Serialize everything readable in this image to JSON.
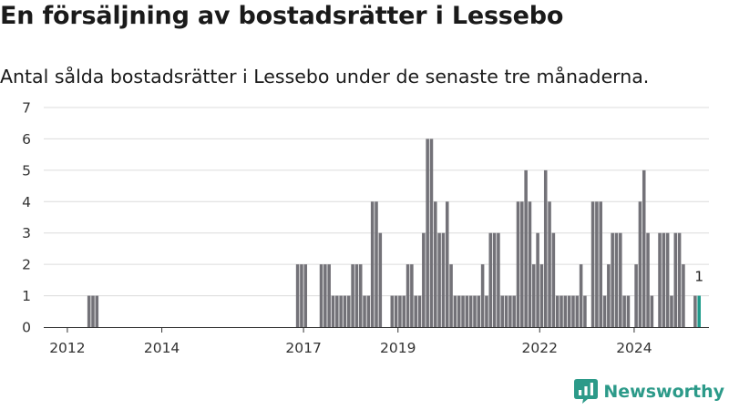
{
  "title": "En försäljning av bostadsrätter i Lessebo",
  "subtitle": "Antal sålda bostadsrätter i Lessebo under de senaste tre månaderna.",
  "brand": {
    "name": "Newsworthy"
  },
  "colors": {
    "bar": "#737278",
    "highlight": "#1f9b8c",
    "grid": "#dcdcdc",
    "axis": "#333333",
    "brand": "#2c9a89"
  },
  "chart_data": {
    "type": "bar",
    "title": "",
    "xlabel": "",
    "ylabel": "",
    "x_unit": "month",
    "ylim": [
      0,
      7
    ],
    "y_ticks": [
      0,
      1,
      2,
      3,
      4,
      5,
      6,
      7
    ],
    "x_range": [
      "2011-07",
      "2025-08"
    ],
    "x_ticks": [
      {
        "label": "2012",
        "date": "2012-01"
      },
      {
        "label": "2014",
        "date": "2014-01"
      },
      {
        "label": "2017",
        "date": "2017-01"
      },
      {
        "label": "2019",
        "date": "2019-01"
      },
      {
        "label": "2022",
        "date": "2022-01"
      },
      {
        "label": "2024",
        "date": "2024-01"
      }
    ],
    "grid": true,
    "series": [
      {
        "data": [
          [
            "2012-06",
            1
          ],
          [
            "2012-07",
            1
          ],
          [
            "2012-08",
            1
          ],
          [
            "2016-11",
            2
          ],
          [
            "2016-12",
            2
          ],
          [
            "2017-01",
            2
          ],
          [
            "2017-05",
            2
          ],
          [
            "2017-06",
            2
          ],
          [
            "2017-07",
            2
          ],
          [
            "2017-08",
            1
          ],
          [
            "2017-09",
            1
          ],
          [
            "2017-10",
            1
          ],
          [
            "2017-11",
            1
          ],
          [
            "2017-12",
            1
          ],
          [
            "2018-01",
            2
          ],
          [
            "2018-02",
            2
          ],
          [
            "2018-03",
            2
          ],
          [
            "2018-04",
            1
          ],
          [
            "2018-05",
            1
          ],
          [
            "2018-06",
            4
          ],
          [
            "2018-07",
            4
          ],
          [
            "2018-08",
            3
          ],
          [
            "2018-11",
            1
          ],
          [
            "2018-12",
            1
          ],
          [
            "2019-01",
            1
          ],
          [
            "2019-02",
            1
          ],
          [
            "2019-03",
            2
          ],
          [
            "2019-04",
            2
          ],
          [
            "2019-05",
            1
          ],
          [
            "2019-06",
            1
          ],
          [
            "2019-07",
            3
          ],
          [
            "2019-08",
            6
          ],
          [
            "2019-09",
            6
          ],
          [
            "2019-10",
            4
          ],
          [
            "2019-11",
            3
          ],
          [
            "2019-12",
            3
          ],
          [
            "2020-01",
            4
          ],
          [
            "2020-02",
            2
          ],
          [
            "2020-03",
            1
          ],
          [
            "2020-04",
            1
          ],
          [
            "2020-05",
            1
          ],
          [
            "2020-06",
            1
          ],
          [
            "2020-07",
            1
          ],
          [
            "2020-08",
            1
          ],
          [
            "2020-09",
            1
          ],
          [
            "2020-10",
            2
          ],
          [
            "2020-11",
            1
          ],
          [
            "2020-12",
            3
          ],
          [
            "2021-01",
            3
          ],
          [
            "2021-02",
            3
          ],
          [
            "2021-03",
            1
          ],
          [
            "2021-04",
            1
          ],
          [
            "2021-05",
            1
          ],
          [
            "2021-06",
            1
          ],
          [
            "2021-07",
            4
          ],
          [
            "2021-08",
            4
          ],
          [
            "2021-09",
            5
          ],
          [
            "2021-10",
            4
          ],
          [
            "2021-11",
            2
          ],
          [
            "2021-12",
            3
          ],
          [
            "2022-01",
            2
          ],
          [
            "2022-02",
            5
          ],
          [
            "2022-03",
            4
          ],
          [
            "2022-04",
            3
          ],
          [
            "2022-05",
            1
          ],
          [
            "2022-06",
            1
          ],
          [
            "2022-07",
            1
          ],
          [
            "2022-08",
            1
          ],
          [
            "2022-09",
            1
          ],
          [
            "2022-10",
            1
          ],
          [
            "2022-11",
            2
          ],
          [
            "2022-12",
            1
          ],
          [
            "2023-02",
            4
          ],
          [
            "2023-03",
            4
          ],
          [
            "2023-04",
            4
          ],
          [
            "2023-05",
            1
          ],
          [
            "2023-06",
            2
          ],
          [
            "2023-07",
            3
          ],
          [
            "2023-08",
            3
          ],
          [
            "2023-09",
            3
          ],
          [
            "2023-10",
            1
          ],
          [
            "2023-11",
            1
          ],
          [
            "2024-01",
            2
          ],
          [
            "2024-02",
            4
          ],
          [
            "2024-03",
            5
          ],
          [
            "2024-04",
            3
          ],
          [
            "2024-05",
            1
          ],
          [
            "2024-07",
            3
          ],
          [
            "2024-08",
            3
          ],
          [
            "2024-09",
            3
          ],
          [
            "2024-10",
            1
          ],
          [
            "2024-11",
            3
          ],
          [
            "2024-12",
            3
          ],
          [
            "2025-01",
            2
          ],
          [
            "2025-04",
            1
          ]
        ]
      }
    ],
    "highlight": {
      "x": "2025-05",
      "y": 1,
      "label": "1"
    }
  }
}
